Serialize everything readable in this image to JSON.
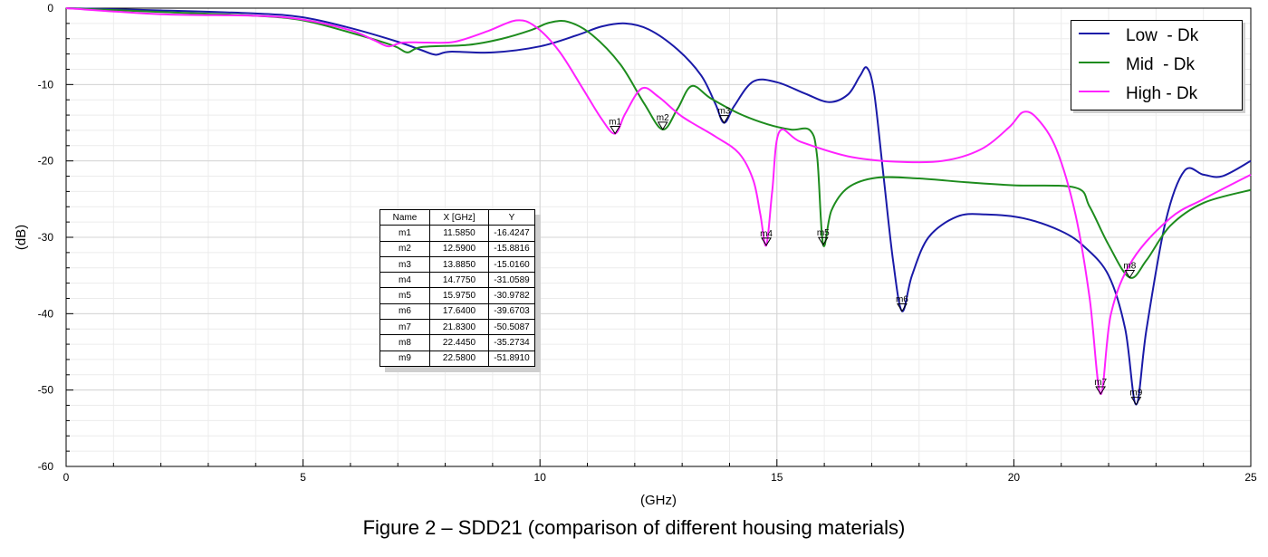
{
  "caption": "Figure 2 – SDD21 (comparison of different housing materials)",
  "chart_data": {
    "type": "line",
    "xlabel": "(GHz)",
    "ylabel": "(dB)",
    "xlim": [
      0,
      25
    ],
    "ylim": [
      -60,
      0
    ],
    "x_ticks": [
      0,
      5,
      10,
      15,
      20,
      25
    ],
    "y_ticks": [
      0,
      -10,
      -20,
      -30,
      -40,
      -50,
      -60
    ],
    "grid": true,
    "legend": "top-right",
    "series": [
      {
        "name": "Low  - Dk",
        "color": "#1a1aa8",
        "points": [
          [
            0,
            0
          ],
          [
            2,
            -0.3
          ],
          [
            4,
            -0.7
          ],
          [
            5,
            -1.2
          ],
          [
            6,
            -2.6
          ],
          [
            7,
            -4.4
          ],
          [
            7.5,
            -5.5
          ],
          [
            7.8,
            -6.1
          ],
          [
            8.1,
            -5.7
          ],
          [
            9,
            -5.8
          ],
          [
            10,
            -5.0
          ],
          [
            10.8,
            -3.5
          ],
          [
            11.3,
            -2.4
          ],
          [
            11.8,
            -2.0
          ],
          [
            12.3,
            -2.8
          ],
          [
            12.9,
            -5.4
          ],
          [
            13.4,
            -8.8
          ],
          [
            13.7,
            -12.5
          ],
          [
            13.885,
            -15.016
          ],
          [
            14.1,
            -12.8
          ],
          [
            14.5,
            -9.6
          ],
          [
            15.0,
            -9.7
          ],
          [
            15.6,
            -11.2
          ],
          [
            16.1,
            -12.3
          ],
          [
            16.5,
            -11.3
          ],
          [
            16.75,
            -8.9
          ],
          [
            16.9,
            -7.8
          ],
          [
            17.05,
            -11
          ],
          [
            17.25,
            -22
          ],
          [
            17.45,
            -33
          ],
          [
            17.64,
            -39.67
          ],
          [
            17.85,
            -35
          ],
          [
            18.2,
            -30
          ],
          [
            18.8,
            -27.3
          ],
          [
            19.4,
            -27.0
          ],
          [
            20.2,
            -27.5
          ],
          [
            21.0,
            -29.2
          ],
          [
            21.5,
            -31.3
          ],
          [
            22.0,
            -35
          ],
          [
            22.35,
            -42
          ],
          [
            22.58,
            -51.891
          ],
          [
            22.8,
            -42
          ],
          [
            23.2,
            -28
          ],
          [
            23.6,
            -21.3
          ],
          [
            24.0,
            -21.8
          ],
          [
            24.4,
            -22
          ],
          [
            25,
            -20
          ]
        ]
      },
      {
        "name": "Mid  - Dk",
        "color": "#1e8c1e",
        "points": [
          [
            0,
            0
          ],
          [
            2,
            -0.5
          ],
          [
            4,
            -1.0
          ],
          [
            5,
            -1.6
          ],
          [
            6,
            -3.2
          ],
          [
            6.9,
            -4.9
          ],
          [
            7.2,
            -5.8
          ],
          [
            7.5,
            -5.1
          ],
          [
            8.5,
            -4.8
          ],
          [
            9.2,
            -4.0
          ],
          [
            9.8,
            -2.9
          ],
          [
            10.2,
            -1.9
          ],
          [
            10.6,
            -1.8
          ],
          [
            11.1,
            -3.5
          ],
          [
            11.7,
            -7.4
          ],
          [
            12.2,
            -12.5
          ],
          [
            12.59,
            -15.882
          ],
          [
            12.9,
            -13.2
          ],
          [
            13.2,
            -10.2
          ],
          [
            13.6,
            -11.8
          ],
          [
            14.2,
            -13.8
          ],
          [
            14.8,
            -15.2
          ],
          [
            15.3,
            -15.9
          ],
          [
            15.7,
            -16.0
          ],
          [
            15.85,
            -19.5
          ],
          [
            15.975,
            -30.978
          ],
          [
            16.15,
            -26.5
          ],
          [
            16.5,
            -23.5
          ],
          [
            17.1,
            -22.2
          ],
          [
            18,
            -22.3
          ],
          [
            19,
            -22.8
          ],
          [
            20,
            -23.2
          ],
          [
            21.3,
            -23.5
          ],
          [
            21.6,
            -26
          ],
          [
            22.0,
            -31
          ],
          [
            22.445,
            -35.273
          ],
          [
            22.8,
            -33
          ],
          [
            23.3,
            -28.5
          ],
          [
            24,
            -25.5
          ],
          [
            25,
            -23.8
          ]
        ]
      },
      {
        "name": "High - Dk",
        "color": "#ff22ff",
        "points": [
          [
            0,
            0
          ],
          [
            2,
            -0.8
          ],
          [
            4,
            -1.0
          ],
          [
            5,
            -1.5
          ],
          [
            6,
            -2.9
          ],
          [
            6.5,
            -4.2
          ],
          [
            6.8,
            -5.0
          ],
          [
            7.1,
            -4.5
          ],
          [
            7.6,
            -4.5
          ],
          [
            8.2,
            -4.4
          ],
          [
            8.9,
            -3.0
          ],
          [
            9.5,
            -1.6
          ],
          [
            9.9,
            -2.4
          ],
          [
            10.4,
            -5.6
          ],
          [
            10.9,
            -10.5
          ],
          [
            11.3,
            -14.5
          ],
          [
            11.585,
            -16.425
          ],
          [
            11.8,
            -13.8
          ],
          [
            12.15,
            -10.5
          ],
          [
            12.5,
            -11.6
          ],
          [
            13.0,
            -14.2
          ],
          [
            13.7,
            -16.8
          ],
          [
            14.2,
            -19.0
          ],
          [
            14.5,
            -22.5
          ],
          [
            14.65,
            -27
          ],
          [
            14.775,
            -31.059
          ],
          [
            14.9,
            -24
          ],
          [
            15.05,
            -16.2
          ],
          [
            15.5,
            -17.5
          ],
          [
            16.5,
            -19.4
          ],
          [
            17.5,
            -20.1
          ],
          [
            18.5,
            -20.0
          ],
          [
            19.3,
            -18.5
          ],
          [
            19.9,
            -15.6
          ],
          [
            20.2,
            -13.6
          ],
          [
            20.5,
            -14.5
          ],
          [
            20.9,
            -18.5
          ],
          [
            21.3,
            -27
          ],
          [
            21.6,
            -38
          ],
          [
            21.83,
            -50.509
          ],
          [
            22.05,
            -40
          ],
          [
            22.5,
            -33
          ],
          [
            23.3,
            -27.5
          ],
          [
            24,
            -25
          ],
          [
            25,
            -21.8
          ]
        ]
      }
    ],
    "markers": [
      {
        "name": "m1",
        "x": 11.585,
        "y": -16.4247,
        "x_text": "11.5850",
        "y_text": "-16.4247"
      },
      {
        "name": "m2",
        "x": 12.59,
        "y": -15.8816,
        "x_text": "12.5900",
        "y_text": "-15.8816"
      },
      {
        "name": "m3",
        "x": 13.885,
        "y": -15.016,
        "x_text": "13.8850",
        "y_text": "-15.0160"
      },
      {
        "name": "m4",
        "x": 14.775,
        "y": -31.0589,
        "x_text": "14.7750",
        "y_text": "-31.0589"
      },
      {
        "name": "m5",
        "x": 15.975,
        "y": -30.9782,
        "x_text": "15.9750",
        "y_text": "-30.9782"
      },
      {
        "name": "m6",
        "x": 17.64,
        "y": -39.6703,
        "x_text": "17.6400",
        "y_text": "-39.6703"
      },
      {
        "name": "m7",
        "x": 21.83,
        "y": -50.5087,
        "x_text": "21.8300",
        "y_text": "-50.5087"
      },
      {
        "name": "m8",
        "x": 22.445,
        "y": -35.2734,
        "x_text": "22.4450",
        "y_text": "-35.2734"
      },
      {
        "name": "m9",
        "x": 22.58,
        "y": -51.891,
        "x_text": "22.5800",
        "y_text": "-51.8910"
      }
    ],
    "marker_table_headers": [
      "Name",
      "X [GHz]",
      "Y"
    ]
  }
}
